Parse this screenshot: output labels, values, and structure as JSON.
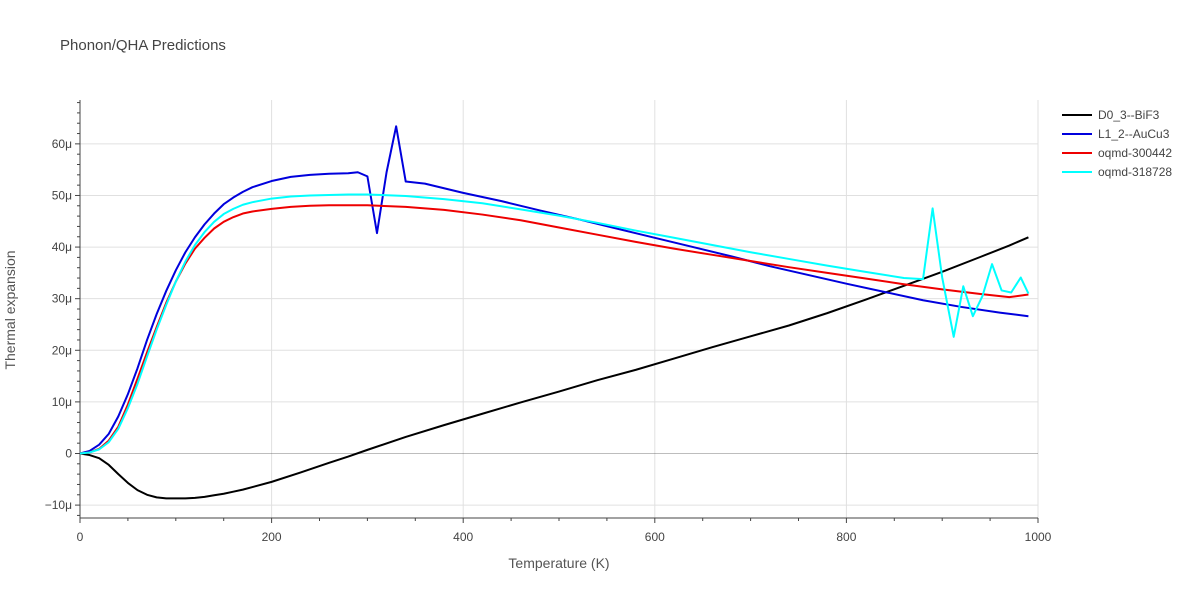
{
  "chart_data": {
    "type": "line",
    "title": "Phonon/QHA Predictions",
    "xlabel": "Temperature (K)",
    "ylabel": "Thermal expansion",
    "xlim": [
      0,
      1000
    ],
    "ylim": [
      -1.25e-05,
      6.85e-05
    ],
    "x_ticks": [
      {
        "value": 0,
        "label": "0"
      },
      {
        "value": 200,
        "label": "200"
      },
      {
        "value": 400,
        "label": "400"
      },
      {
        "value": 600,
        "label": "600"
      },
      {
        "value": 800,
        "label": "800"
      },
      {
        "value": 1000,
        "label": "1000"
      }
    ],
    "y_ticks": [
      {
        "value": -1e-05,
        "label": "−10μ"
      },
      {
        "value": 0,
        "label": "0"
      },
      {
        "value": 1e-05,
        "label": "10μ"
      },
      {
        "value": 2e-05,
        "label": "20μ"
      },
      {
        "value": 3e-05,
        "label": "30μ"
      },
      {
        "value": 4e-05,
        "label": "40μ"
      },
      {
        "value": 5e-05,
        "label": "50μ"
      },
      {
        "value": 6e-05,
        "label": "60μ"
      }
    ],
    "grid": true,
    "legend": "top-right outside",
    "series": [
      {
        "name": "D0_3--BiF3",
        "color": "#000000",
        "points": [
          [
            0,
            0
          ],
          [
            10,
            -3e-07
          ],
          [
            20,
            -9e-07
          ],
          [
            30,
            -2.2e-06
          ],
          [
            40,
            -4e-06
          ],
          [
            50,
            -5.7e-06
          ],
          [
            60,
            -7.1e-06
          ],
          [
            70,
            -8e-06
          ],
          [
            80,
            -8.5e-06
          ],
          [
            90,
            -8.7e-06
          ],
          [
            100,
            -8.7e-06
          ],
          [
            110,
            -8.7e-06
          ],
          [
            120,
            -8.6e-06
          ],
          [
            130,
            -8.4e-06
          ],
          [
            140,
            -8.1e-06
          ],
          [
            150,
            -7.8e-06
          ],
          [
            160,
            -7.4e-06
          ],
          [
            170,
            -7e-06
          ],
          [
            180,
            -6.5e-06
          ],
          [
            200,
            -5.5e-06
          ],
          [
            230,
            -3.7e-06
          ],
          [
            260,
            -1.8e-06
          ],
          [
            280,
            -6e-07
          ],
          [
            300,
            7e-07
          ],
          [
            340,
            3.2e-06
          ],
          [
            380,
            5.5e-06
          ],
          [
            420,
            7.7e-06
          ],
          [
            460,
            9.9e-06
          ],
          [
            500,
            1.2e-05
          ],
          [
            540,
            1.42e-05
          ],
          [
            580,
            1.62e-05
          ],
          [
            620,
            1.84e-05
          ],
          [
            660,
            2.06e-05
          ],
          [
            700,
            2.27e-05
          ],
          [
            740,
            2.48e-05
          ],
          [
            780,
            2.72e-05
          ],
          [
            820,
            2.98e-05
          ],
          [
            860,
            3.25e-05
          ],
          [
            900,
            3.52e-05
          ],
          [
            940,
            3.81e-05
          ],
          [
            970,
            4.03e-05
          ],
          [
            990,
            4.19e-05
          ]
        ]
      },
      {
        "name": "L1_2--AuCu3",
        "color": "#0000dd",
        "points": [
          [
            0,
            0
          ],
          [
            10,
            5e-07
          ],
          [
            20,
            1.7e-06
          ],
          [
            30,
            3.8e-06
          ],
          [
            40,
            7.2e-06
          ],
          [
            50,
            1.15e-05
          ],
          [
            60,
            1.65e-05
          ],
          [
            70,
            2.2e-05
          ],
          [
            80,
            2.7e-05
          ],
          [
            90,
            3.15e-05
          ],
          [
            100,
            3.55e-05
          ],
          [
            110,
            3.9e-05
          ],
          [
            120,
            4.19e-05
          ],
          [
            130,
            4.44e-05
          ],
          [
            140,
            4.65e-05
          ],
          [
            150,
            4.83e-05
          ],
          [
            160,
            4.96e-05
          ],
          [
            170,
            5.07e-05
          ],
          [
            180,
            5.16e-05
          ],
          [
            200,
            5.28e-05
          ],
          [
            220,
            5.36e-05
          ],
          [
            240,
            5.4e-05
          ],
          [
            260,
            5.42e-05
          ],
          [
            280,
            5.43e-05
          ],
          [
            290,
            5.45e-05
          ],
          [
            300,
            5.37e-05
          ],
          [
            310,
            4.27e-05
          ],
          [
            320,
            5.45e-05
          ],
          [
            330,
            6.34e-05
          ],
          [
            340,
            5.27e-05
          ],
          [
            360,
            5.23e-05
          ],
          [
            380,
            5.14e-05
          ],
          [
            400,
            5.05e-05
          ],
          [
            440,
            4.89e-05
          ],
          [
            480,
            4.71e-05
          ],
          [
            520,
            4.54e-05
          ],
          [
            560,
            4.36e-05
          ],
          [
            600,
            4.18e-05
          ],
          [
            640,
            4e-05
          ],
          [
            680,
            3.82e-05
          ],
          [
            720,
            3.63e-05
          ],
          [
            760,
            3.46e-05
          ],
          [
            800,
            3.29e-05
          ],
          [
            840,
            3.13e-05
          ],
          [
            880,
            2.97e-05
          ],
          [
            920,
            2.84e-05
          ],
          [
            960,
            2.73e-05
          ],
          [
            990,
            2.66e-05
          ]
        ]
      },
      {
        "name": "oqmd-300442",
        "color": "#ee0000",
        "points": [
          [
            0,
            0
          ],
          [
            10,
            2e-07
          ],
          [
            20,
            9e-07
          ],
          [
            30,
            2.5e-06
          ],
          [
            40,
            5.2e-06
          ],
          [
            50,
            9.5e-06
          ],
          [
            60,
            1.45e-05
          ],
          [
            70,
            1.96e-05
          ],
          [
            80,
            2.45e-05
          ],
          [
            90,
            2.92e-05
          ],
          [
            100,
            3.33e-05
          ],
          [
            110,
            3.68e-05
          ],
          [
            120,
            3.97e-05
          ],
          [
            130,
            4.18e-05
          ],
          [
            140,
            4.36e-05
          ],
          [
            150,
            4.49e-05
          ],
          [
            160,
            4.58e-05
          ],
          [
            170,
            4.65e-05
          ],
          [
            180,
            4.69e-05
          ],
          [
            200,
            4.74e-05
          ],
          [
            220,
            4.78e-05
          ],
          [
            240,
            4.8e-05
          ],
          [
            260,
            4.81e-05
          ],
          [
            280,
            4.81e-05
          ],
          [
            300,
            4.81e-05
          ],
          [
            340,
            4.78e-05
          ],
          [
            380,
            4.72e-05
          ],
          [
            420,
            4.63e-05
          ],
          [
            460,
            4.52e-05
          ],
          [
            500,
            4.38e-05
          ],
          [
            540,
            4.24e-05
          ],
          [
            580,
            4.1e-05
          ],
          [
            620,
            3.97e-05
          ],
          [
            660,
            3.85e-05
          ],
          [
            700,
            3.73e-05
          ],
          [
            740,
            3.61e-05
          ],
          [
            780,
            3.5e-05
          ],
          [
            820,
            3.39e-05
          ],
          [
            860,
            3.28e-05
          ],
          [
            900,
            3.18e-05
          ],
          [
            940,
            3.09e-05
          ],
          [
            970,
            3.03e-05
          ],
          [
            990,
            3.08e-05
          ]
        ]
      },
      {
        "name": "oqmd-318728",
        "color": "#00ffff",
        "points": [
          [
            0,
            0
          ],
          [
            10,
            2e-07
          ],
          [
            20,
            8e-07
          ],
          [
            30,
            2.2e-06
          ],
          [
            40,
            4.8e-06
          ],
          [
            50,
            8.8e-06
          ],
          [
            60,
            1.35e-05
          ],
          [
            70,
            1.88e-05
          ],
          [
            80,
            2.4e-05
          ],
          [
            90,
            2.88e-05
          ],
          [
            100,
            3.33e-05
          ],
          [
            110,
            3.72e-05
          ],
          [
            120,
            4.04e-05
          ],
          [
            130,
            4.29e-05
          ],
          [
            140,
            4.49e-05
          ],
          [
            150,
            4.64e-05
          ],
          [
            160,
            4.74e-05
          ],
          [
            170,
            4.82e-05
          ],
          [
            180,
            4.87e-05
          ],
          [
            200,
            4.94e-05
          ],
          [
            220,
            4.98e-05
          ],
          [
            240,
            5e-05
          ],
          [
            260,
            5.01e-05
          ],
          [
            280,
            5.02e-05
          ],
          [
            300,
            5.02e-05
          ],
          [
            340,
            4.99e-05
          ],
          [
            380,
            4.93e-05
          ],
          [
            420,
            4.85e-05
          ],
          [
            460,
            4.73e-05
          ],
          [
            500,
            4.61e-05
          ],
          [
            540,
            4.47e-05
          ],
          [
            580,
            4.32e-05
          ],
          [
            620,
            4.18e-05
          ],
          [
            660,
            4.04e-05
          ],
          [
            700,
            3.9e-05
          ],
          [
            740,
            3.77e-05
          ],
          [
            780,
            3.64e-05
          ],
          [
            820,
            3.52e-05
          ],
          [
            860,
            3.4e-05
          ],
          [
            880,
            3.38e-05
          ],
          [
            890,
            4.75e-05
          ],
          [
            900,
            3.41e-05
          ],
          [
            912,
            2.26e-05
          ],
          [
            922,
            3.24e-05
          ],
          [
            932,
            2.66e-05
          ],
          [
            942,
            3.05e-05
          ],
          [
            952,
            3.67e-05
          ],
          [
            962,
            3.16e-05
          ],
          [
            972,
            3.12e-05
          ],
          [
            982,
            3.41e-05
          ],
          [
            990,
            3.1e-05
          ]
        ]
      }
    ]
  }
}
